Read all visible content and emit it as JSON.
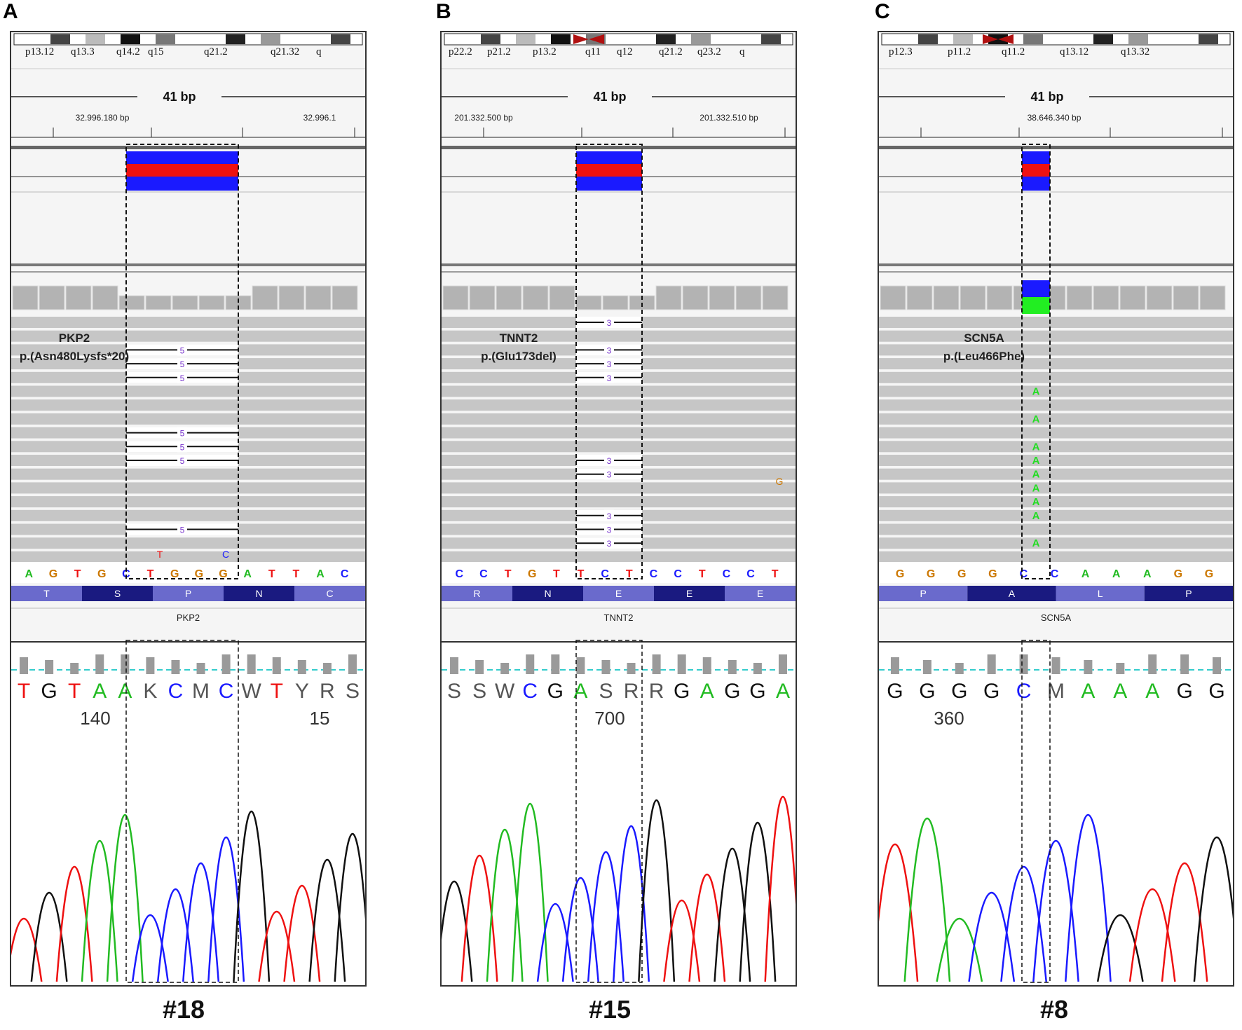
{
  "panels": [
    {
      "letter": "A",
      "cytobands": [
        "p13.12",
        "q13.3",
        "q14.2",
        "q15",
        "q21.2",
        "q21.32",
        "q"
      ],
      "ruler_span": "41 bp",
      "coords": [
        "32.996.180 bp",
        "32.996.1"
      ],
      "gene_track_label": "PKP2",
      "variant_gene": "PKP2",
      "variant_protein": "p.(Asn480Lysfs*20)",
      "read_marks": [
        "5",
        "5",
        "5",
        "5",
        "5",
        "5",
        "5",
        "5"
      ],
      "mismatch_top": [
        "T",
        "C"
      ],
      "ref_seq": [
        "A",
        "G",
        "T",
        "G",
        "C",
        "T",
        "G",
        "G",
        "G",
        "A",
        "T",
        "T",
        "A",
        "C"
      ],
      "amino_acids": [
        "T",
        "S",
        "P",
        "N",
        "C"
      ],
      "sanger_bases": [
        "T",
        "G",
        "T",
        "A",
        "A",
        "K",
        "C",
        "M",
        "C",
        "W",
        "T",
        "Y",
        "R",
        "S"
      ],
      "sanger_positions": [
        "140",
        "15"
      ],
      "patient": "#18"
    },
    {
      "letter": "B",
      "cytobands": [
        "p22.2",
        "p21.2",
        "p13.2",
        "q11",
        "q12",
        "q21.2",
        "q23.2",
        "q"
      ],
      "ruler_span": "41 bp",
      "coords": [
        "201.332.500 bp",
        "201.332.510 bp"
      ],
      "gene_track_label": "TNNT2",
      "variant_gene": "TNNT2",
      "variant_protein": "p.(Glu173del)",
      "read_marks": [
        "3",
        "3",
        "3",
        "3",
        "3",
        "3",
        "3",
        "3",
        "3"
      ],
      "mismatch_side": "G",
      "ref_seq": [
        "C",
        "C",
        "T",
        "G",
        "T",
        "T",
        "C",
        "T",
        "C",
        "C",
        "T",
        "C",
        "C",
        "T"
      ],
      "amino_acids": [
        "R",
        "N",
        "E",
        "E",
        "E"
      ],
      "sanger_bases": [
        "S",
        "S",
        "W",
        "C",
        "G",
        "A",
        "S",
        "R",
        "R",
        "G",
        "A",
        "G",
        "G",
        "A"
      ],
      "sanger_positions": [
        "700"
      ],
      "patient": "#15"
    },
    {
      "letter": "C",
      "cytobands": [
        "p12.3",
        "p11.2",
        "q11.2",
        "q13.12",
        "q13.32"
      ],
      "ruler_span": "41 bp",
      "coords": [
        "38.646.340 bp"
      ],
      "gene_track_label": "SCN5A",
      "variant_gene": "SCN5A",
      "variant_protein": "p.(Leu466Phe)",
      "alt_allele": [
        "A",
        "A",
        "A",
        "A",
        "A",
        "A",
        "A",
        "A",
        "A",
        "A"
      ],
      "ref_seq": [
        "G",
        "G",
        "G",
        "G",
        "C",
        "C",
        "A",
        "A",
        "A",
        "G",
        "G"
      ],
      "amino_acids": [
        "P",
        "A",
        "L",
        "P"
      ],
      "sanger_bases": [
        "G",
        "G",
        "G",
        "G",
        "C",
        "M",
        "A",
        "A",
        "A",
        "G",
        "G"
      ],
      "sanger_positions": [
        "360"
      ],
      "patient": "#8"
    }
  ],
  "colors": {
    "blue": "#1a1aff",
    "red": "#ee1111",
    "green": "#22bb22",
    "orange": "#cc7700",
    "black": "#111111",
    "purple": "#7733cc",
    "aa_dark": "#1a1a80",
    "aa_light": "#6a6acc",
    "read_gray": "#c6c6c6"
  }
}
